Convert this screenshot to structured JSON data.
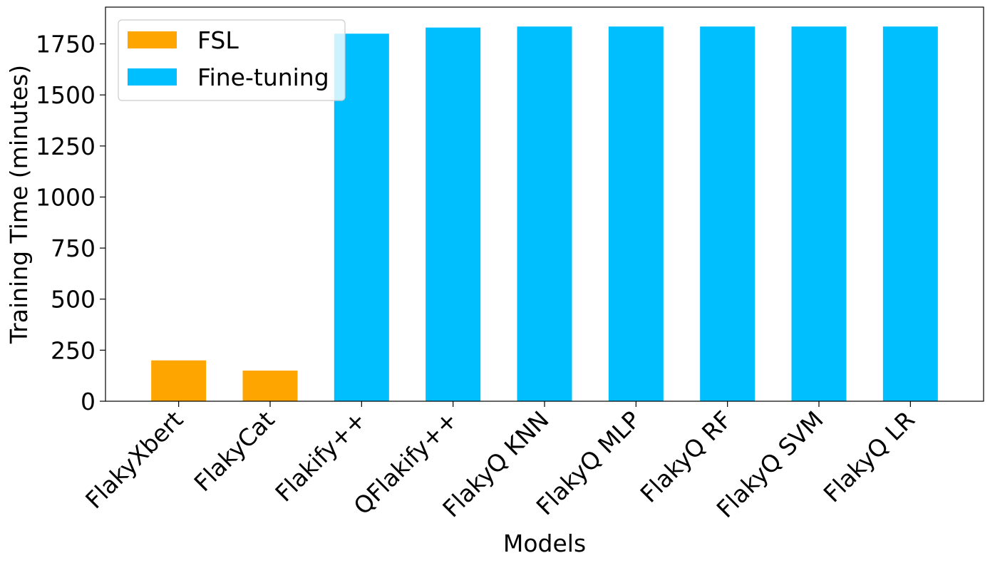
{
  "chart_data": {
    "type": "bar",
    "title": "",
    "xlabel": "Models",
    "ylabel": "Training Time (minutes)",
    "ylim": [
      0,
      1930
    ],
    "yticks": [
      0,
      250,
      500,
      750,
      1000,
      1250,
      1500,
      1750
    ],
    "grid": false,
    "legend_position": "top-left",
    "categories": [
      "FlakyXbert",
      "FlakyCat",
      "Flakify++",
      "QFlakify++",
      "FlakyQ KNN",
      "FlakyQ MLP",
      "FlakyQ RF",
      "FlakyQ SVM",
      "FlakyQ LR"
    ],
    "series": [
      {
        "name": "FSL",
        "color": "#ffa500",
        "values": [
          200,
          150,
          null,
          null,
          null,
          null,
          null,
          null,
          null
        ]
      },
      {
        "name": "Fine-tuning",
        "color": "#00bfff",
        "values": [
          null,
          null,
          1800,
          1830,
          1835,
          1835,
          1835,
          1835,
          1835
        ]
      }
    ]
  }
}
